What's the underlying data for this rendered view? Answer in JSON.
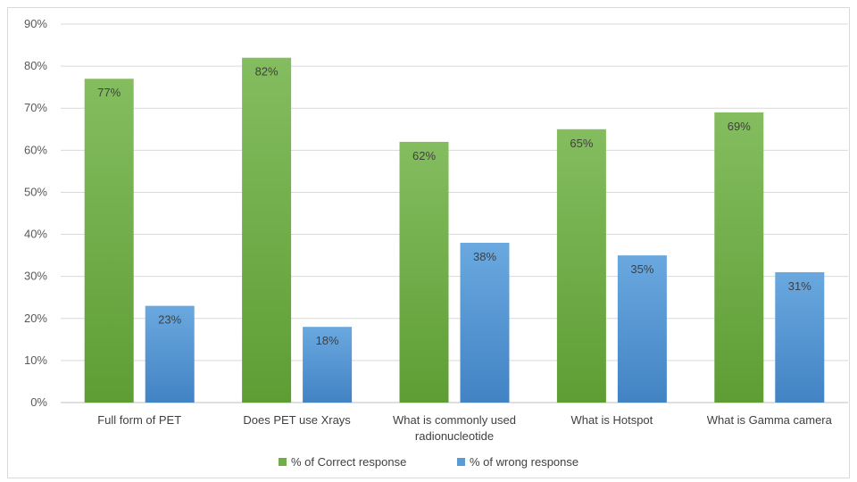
{
  "chart_data": {
    "type": "bar",
    "categories": [
      [
        "Full form of PET"
      ],
      [
        "Does PET use Xrays"
      ],
      [
        "What is commonly used",
        "radionucleotide"
      ],
      [
        "What is Hotspot"
      ],
      [
        "What is Gamma camera"
      ]
    ],
    "series": [
      {
        "name": "% of Correct response",
        "values": [
          77,
          82,
          62,
          65,
          69
        ],
        "labels": [
          "77%",
          "82%",
          "62%",
          "65%",
          "69%"
        ],
        "color": "#70ad47",
        "color_light": "#84bd5f",
        "color_dark": "#5e9d34"
      },
      {
        "name": "% of wrong response",
        "values": [
          23,
          18,
          38,
          35,
          31
        ],
        "labels": [
          "23%",
          "18%",
          "38%",
          "35%",
          "31%"
        ],
        "color": "#5b9bd5",
        "color_light": "#6aa8df",
        "color_dark": "#4283c4"
      }
    ],
    "ylim": [
      0,
      90
    ],
    "yticks": [
      "0%",
      "10%",
      "20%",
      "30%",
      "40%",
      "50%",
      "60%",
      "70%",
      "80%",
      "90%"
    ],
    "grid": true,
    "legend_position": "bottom"
  }
}
